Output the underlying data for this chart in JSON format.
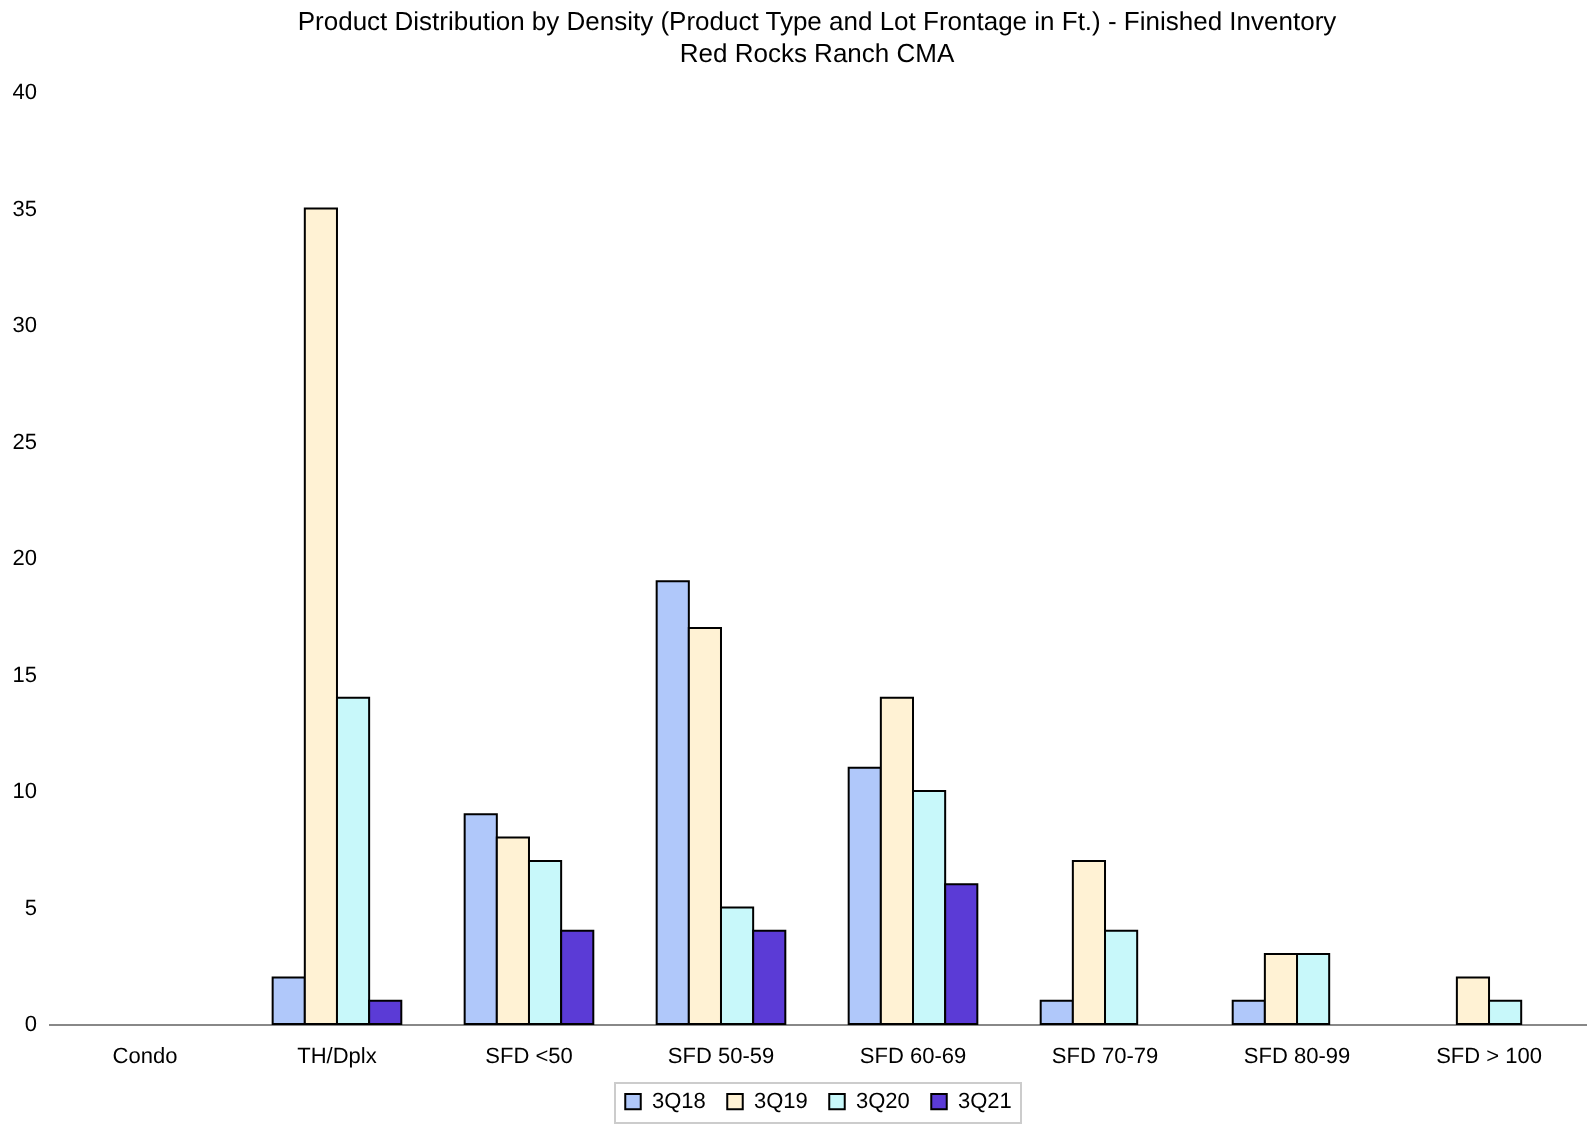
{
  "chart_data": {
    "type": "bar",
    "title": "Product Distribution by Density (Product Type and Lot Frontage in Ft.) - Finished Inventory",
    "subtitle": "Red Rocks Ranch CMA",
    "categories": [
      "Condo",
      "TH/Dplx",
      "SFD <50",
      "SFD 50-59",
      "SFD 60-69",
      "SFD 70-79",
      "SFD 80-99",
      "SFD > 100"
    ],
    "series": [
      {
        "name": "3Q18",
        "color": "#b0c8fa",
        "values": [
          0,
          2,
          9,
          19,
          11,
          1,
          1,
          0
        ]
      },
      {
        "name": "3Q19",
        "color": "#fff2d4",
        "values": [
          0,
          35,
          8,
          17,
          14,
          7,
          3,
          2
        ]
      },
      {
        "name": "3Q20",
        "color": "#c8f8fa",
        "values": [
          0,
          14,
          7,
          5,
          10,
          4,
          3,
          1
        ]
      },
      {
        "name": "3Q21",
        "color": "#5b3bd6",
        "values": [
          0,
          1,
          4,
          4,
          6,
          0,
          0,
          0
        ]
      }
    ],
    "ylim": [
      0,
      40
    ],
    "yticks": [
      0,
      5,
      10,
      15,
      20,
      25,
      30,
      35,
      40
    ],
    "grid": false,
    "legend": "bottom"
  }
}
